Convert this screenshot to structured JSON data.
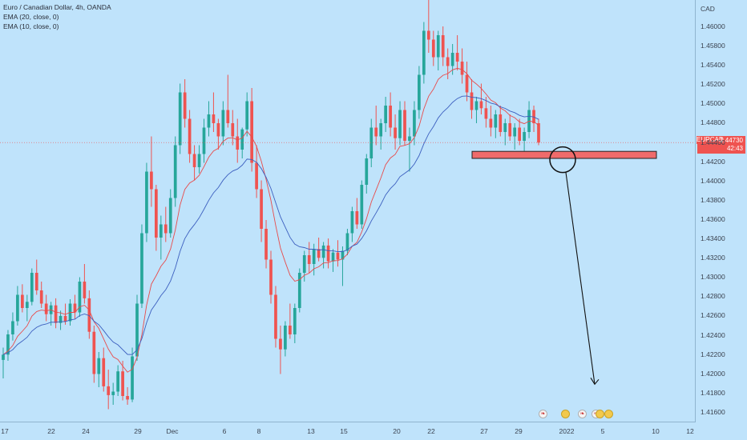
{
  "legend": {
    "title": "Euro / Canadian Dollar, 4h, OANDA",
    "ema20": "EMA (20, close, 0)",
    "ema10": "EMA (10, close, 0)"
  },
  "price_axis": {
    "currency": "CAD",
    "ticks": [
      "1.46000",
      "1.45800",
      "1.45400",
      "1.45200",
      "1.45000",
      "1.44800",
      "1.44400",
      "1.44200",
      "1.44000",
      "1.43800",
      "1.43600",
      "1.43400",
      "1.43200",
      "1.43000",
      "1.42800",
      "1.42600",
      "1.42400",
      "1.42200",
      "1.42000",
      "1.41800",
      "1.41600"
    ],
    "current_symbol": "EURCAD",
    "current_price": "1.44730",
    "countdown": "42:43"
  },
  "time_axis": {
    "ticks": [
      "17",
      "22",
      "24",
      "29",
      "Dec",
      "6",
      "8",
      "13",
      "15",
      "20",
      "22",
      "27",
      "29",
      "2022",
      "5",
      "10",
      "12"
    ]
  },
  "colors": {
    "background": "#bfe3fb",
    "up": "#26a69a",
    "down": "#ef5350",
    "ema10": "#e84b4b",
    "ema20": "#3c5fbf",
    "zone": "#ef6b6b"
  },
  "annotations": {
    "zone": {
      "price_top": 1.4463,
      "price_bottom": 1.4455
    },
    "circle_icon": "circle-marker",
    "arrow_icon": "down-arrow-projection",
    "arrow_target_price": 1.4202
  },
  "events": [
    "flag-ca",
    "gold",
    "flag-ca",
    "flag-ca",
    "gold",
    "gold"
  ],
  "chart_data": {
    "type": "candlestick",
    "title": "Euro / Canadian Dollar, 4h, OANDA",
    "ylim": [
      1.4155,
      1.4635
    ],
    "grid": false,
    "series": [
      {
        "name": "EMA (10, close, 0)",
        "type": "line"
      },
      {
        "name": "EMA (20, close, 0)",
        "type": "line"
      }
    ],
    "current_price": 1.4473,
    "candles": [
      [
        1.4226,
        1.424,
        1.4205,
        1.4232
      ],
      [
        1.4232,
        1.426,
        1.4225,
        1.4255
      ],
      [
        1.4255,
        1.428,
        1.4248,
        1.427
      ],
      [
        1.427,
        1.431,
        1.4265,
        1.43
      ],
      [
        1.43,
        1.4312,
        1.428,
        1.4285
      ],
      [
        1.4285,
        1.43,
        1.427,
        1.4292
      ],
      [
        1.4292,
        1.433,
        1.4288,
        1.4325
      ],
      [
        1.4325,
        1.434,
        1.43,
        1.4305
      ],
      [
        1.4305,
        1.4315,
        1.4285,
        1.429
      ],
      [
        1.429,
        1.43,
        1.427,
        1.4278
      ],
      [
        1.4278,
        1.4292,
        1.4265,
        1.4288
      ],
      [
        1.4288,
        1.4296,
        1.4262,
        1.4268
      ],
      [
        1.4268,
        1.4282,
        1.426,
        1.4276
      ],
      [
        1.4276,
        1.429,
        1.4266,
        1.427
      ],
      [
        1.427,
        1.4295,
        1.4265,
        1.429
      ],
      [
        1.429,
        1.43,
        1.4272,
        1.428
      ],
      [
        1.428,
        1.432,
        1.4275,
        1.4315
      ],
      [
        1.4315,
        1.4335,
        1.429,
        1.4296
      ],
      [
        1.4296,
        1.4305,
        1.425,
        1.4258
      ],
      [
        1.4258,
        1.4265,
        1.42,
        1.421
      ],
      [
        1.421,
        1.4235,
        1.4195,
        1.4228
      ],
      [
        1.4228,
        1.424,
        1.419,
        1.4196
      ],
      [
        1.4196,
        1.4215,
        1.417,
        1.4186
      ],
      [
        1.4186,
        1.42,
        1.4175,
        1.419
      ],
      [
        1.419,
        1.422,
        1.4185,
        1.4213
      ],
      [
        1.4213,
        1.4225,
        1.418,
        1.4185
      ],
      [
        1.4185,
        1.4195,
        1.4175,
        1.4181
      ],
      [
        1.4181,
        1.424,
        1.4178,
        1.423
      ],
      [
        1.423,
        1.43,
        1.4225,
        1.429
      ],
      [
        1.429,
        1.438,
        1.4285,
        1.437
      ],
      [
        1.437,
        1.445,
        1.436,
        1.444
      ],
      [
        1.444,
        1.448,
        1.44,
        1.442
      ],
      [
        1.442,
        1.4425,
        1.435,
        1.4365
      ],
      [
        1.4365,
        1.439,
        1.434,
        1.438
      ],
      [
        1.438,
        1.44,
        1.436,
        1.437
      ],
      [
        1.437,
        1.442,
        1.4365,
        1.441
      ],
      [
        1.441,
        1.448,
        1.44,
        1.447
      ],
      [
        1.447,
        1.454,
        1.446,
        1.453
      ],
      [
        1.453,
        1.4545,
        1.449,
        1.45
      ],
      [
        1.45,
        1.451,
        1.445,
        1.446
      ],
      [
        1.446,
        1.447,
        1.443,
        1.4445
      ],
      [
        1.4445,
        1.447,
        1.4438,
        1.446
      ],
      [
        1.446,
        1.45,
        1.445,
        1.449
      ],
      [
        1.449,
        1.452,
        1.448,
        1.4505
      ],
      [
        1.4505,
        1.453,
        1.4485,
        1.4495
      ],
      [
        1.4495,
        1.45,
        1.4465,
        1.448
      ],
      [
        1.448,
        1.452,
        1.447,
        1.451
      ],
      [
        1.451,
        1.455,
        1.449,
        1.4495
      ],
      [
        1.4495,
        1.451,
        1.447,
        1.448
      ],
      [
        1.448,
        1.45,
        1.445,
        1.4465
      ],
      [
        1.4465,
        1.449,
        1.4455,
        1.4488
      ],
      [
        1.4488,
        1.453,
        1.448,
        1.452
      ],
      [
        1.452,
        1.4535,
        1.444,
        1.445
      ],
      [
        1.445,
        1.447,
        1.441,
        1.442
      ],
      [
        1.442,
        1.443,
        1.436,
        1.4375
      ],
      [
        1.4375,
        1.4385,
        1.433,
        1.434
      ],
      [
        1.434,
        1.435,
        1.429,
        1.43
      ],
      [
        1.43,
        1.431,
        1.424,
        1.425
      ],
      [
        1.425,
        1.4265,
        1.421,
        1.4238
      ],
      [
        1.4238,
        1.427,
        1.423,
        1.4265
      ],
      [
        1.4265,
        1.429,
        1.425,
        1.4255
      ],
      [
        1.4255,
        1.429,
        1.4245,
        1.4285
      ],
      [
        1.4285,
        1.433,
        1.428,
        1.4325
      ],
      [
        1.4325,
        1.435,
        1.4315,
        1.4345
      ],
      [
        1.4345,
        1.436,
        1.4325,
        1.4335
      ],
      [
        1.4335,
        1.4358,
        1.4322,
        1.4352
      ],
      [
        1.4352,
        1.4365,
        1.4338,
        1.4342
      ],
      [
        1.4342,
        1.436,
        1.433,
        1.4356
      ],
      [
        1.4356,
        1.4364,
        1.433,
        1.4338
      ],
      [
        1.4338,
        1.4352,
        1.4326,
        1.4348
      ],
      [
        1.4348,
        1.4362,
        1.4332,
        1.434
      ],
      [
        1.434,
        1.4355,
        1.431,
        1.435
      ],
      [
        1.435,
        1.4375,
        1.4345,
        1.437
      ],
      [
        1.437,
        1.44,
        1.436,
        1.4395
      ],
      [
        1.4395,
        1.441,
        1.4375,
        1.438
      ],
      [
        1.438,
        1.443,
        1.4375,
        1.4425
      ],
      [
        1.4425,
        1.446,
        1.4415,
        1.4455
      ],
      [
        1.4455,
        1.45,
        1.4445,
        1.449
      ],
      [
        1.449,
        1.4515,
        1.447,
        1.448
      ],
      [
        1.448,
        1.45,
        1.4465,
        1.4495
      ],
      [
        1.4495,
        1.4525,
        1.4485,
        1.4515
      ],
      [
        1.4515,
        1.453,
        1.448,
        1.449
      ],
      [
        1.449,
        1.4505,
        1.4465,
        1.4478
      ],
      [
        1.4478,
        1.452,
        1.447,
        1.451
      ],
      [
        1.451,
        1.452,
        1.447,
        1.4475
      ],
      [
        1.4475,
        1.449,
        1.444,
        1.448
      ],
      [
        1.448,
        1.452,
        1.447,
        1.451
      ],
      [
        1.451,
        1.456,
        1.45,
        1.455
      ],
      [
        1.455,
        1.461,
        1.454,
        1.46
      ],
      [
        1.46,
        1.4635,
        1.4575,
        1.459
      ],
      [
        1.459,
        1.46,
        1.456,
        1.457
      ],
      [
        1.457,
        1.46,
        1.4555,
        1.4595
      ],
      [
        1.4595,
        1.4605,
        1.456,
        1.457
      ],
      [
        1.457,
        1.458,
        1.4545,
        1.456
      ],
      [
        1.456,
        1.4585,
        1.455,
        1.4575
      ],
      [
        1.4575,
        1.4595,
        1.4555,
        1.4565
      ],
      [
        1.4565,
        1.458,
        1.454,
        1.455
      ],
      [
        1.455,
        1.4565,
        1.452,
        1.453
      ],
      [
        1.453,
        1.4545,
        1.45,
        1.451
      ],
      [
        1.451,
        1.4525,
        1.4495,
        1.452
      ],
      [
        1.452,
        1.454,
        1.4505,
        1.4512
      ],
      [
        1.4512,
        1.4525,
        1.449,
        1.45
      ],
      [
        1.45,
        1.4515,
        1.448,
        1.449
      ],
      [
        1.449,
        1.451,
        1.4478,
        1.4505
      ],
      [
        1.4505,
        1.4515,
        1.448,
        1.4485
      ],
      [
        1.4485,
        1.45,
        1.447,
        1.4495
      ],
      [
        1.4495,
        1.4505,
        1.4475,
        1.448
      ],
      [
        1.448,
        1.4495,
        1.4465,
        1.449
      ],
      [
        1.449,
        1.45,
        1.447,
        1.4475
      ],
      [
        1.4475,
        1.449,
        1.446,
        1.4485
      ],
      [
        1.4485,
        1.452,
        1.4478,
        1.451
      ],
      [
        1.451,
        1.4515,
        1.4485,
        1.4495
      ],
      [
        1.4495,
        1.45,
        1.447,
        1.4473
      ]
    ]
  }
}
